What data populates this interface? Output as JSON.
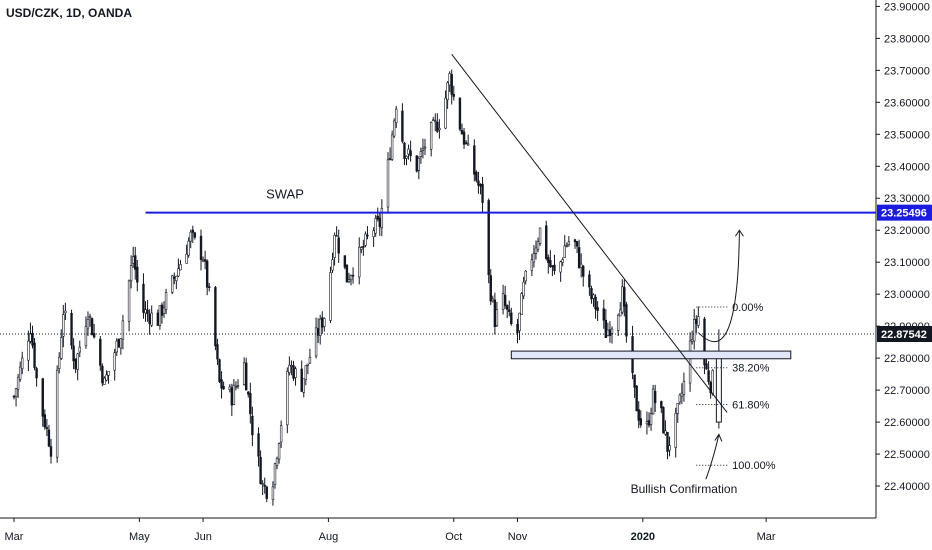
{
  "header": {
    "title": "USD/CZK, 1D, OANDA"
  },
  "colors": {
    "up": "#131722",
    "down": "#131722",
    "swap": "#1c1ce0",
    "zone_fill": "#e1e6f8",
    "zone_stroke": "#131722",
    "axis_text": "#131722",
    "badge_bg": "#131722",
    "badge_swap_bg": "#1c1ce0",
    "badge_text": "#ffffff"
  },
  "chart_data": {
    "type": "candlestick",
    "y_axis": {
      "range": [
        22.3,
        23.92
      ],
      "ticks": [
        "22.40000",
        "22.50000",
        "22.60000",
        "22.70000",
        "22.80000",
        "22.90000",
        "23.00000",
        "23.10000",
        "23.20000",
        "23.30000",
        "23.40000",
        "23.50000",
        "23.60000",
        "23.70000",
        "23.80000",
        "23.90000"
      ],
      "tick_values": [
        22.4,
        22.5,
        22.6,
        22.7,
        22.8,
        22.9,
        23.0,
        23.1,
        23.2,
        23.3,
        23.4,
        23.5,
        23.6,
        23.7,
        23.8,
        23.9
      ]
    },
    "x_axis": {
      "labels": [
        {
          "text": "Mar",
          "day": 0
        },
        {
          "text": "May",
          "day": 61
        },
        {
          "text": "Jun",
          "day": 92
        },
        {
          "text": "Aug",
          "day": 153
        },
        {
          "text": "Oct",
          "day": 214
        },
        {
          "text": "Nov",
          "day": 245
        },
        {
          "text": "2020",
          "day": 306
        },
        {
          "text": "Mar",
          "day": 366
        }
      ]
    },
    "anchors": [
      {
        "day": 0,
        "price": 22.68
      },
      {
        "day": 8,
        "price": 22.9
      },
      {
        "day": 12,
        "price": 22.68
      },
      {
        "day": 18,
        "price": 22.52
      },
      {
        "day": 24,
        "price": 22.95
      },
      {
        "day": 30,
        "price": 22.78
      },
      {
        "day": 36,
        "price": 22.95
      },
      {
        "day": 44,
        "price": 22.72
      },
      {
        "day": 52,
        "price": 22.88
      },
      {
        "day": 58,
        "price": 23.12
      },
      {
        "day": 62,
        "price": 22.95
      },
      {
        "day": 70,
        "price": 22.92
      },
      {
        "day": 78,
        "price": 23.05
      },
      {
        "day": 86,
        "price": 23.18
      },
      {
        "day": 92,
        "price": 23.12
      },
      {
        "day": 96,
        "price": 22.95
      },
      {
        "day": 100,
        "price": 22.72
      },
      {
        "day": 106,
        "price": 22.68
      },
      {
        "day": 112,
        "price": 22.78
      },
      {
        "day": 116,
        "price": 22.58
      },
      {
        "day": 121,
        "price": 22.4
      },
      {
        "day": 125,
        "price": 22.38
      },
      {
        "day": 130,
        "price": 22.6
      },
      {
        "day": 134,
        "price": 22.78
      },
      {
        "day": 140,
        "price": 22.72
      },
      {
        "day": 146,
        "price": 22.85
      },
      {
        "day": 152,
        "price": 22.95
      },
      {
        "day": 156,
        "price": 23.2
      },
      {
        "day": 162,
        "price": 23.05
      },
      {
        "day": 168,
        "price": 23.12
      },
      {
        "day": 174,
        "price": 23.2
      },
      {
        "day": 178,
        "price": 23.22
      },
      {
        "day": 182,
        "price": 23.4
      },
      {
        "day": 186,
        "price": 23.6
      },
      {
        "day": 190,
        "price": 23.45
      },
      {
        "day": 196,
        "price": 23.4
      },
      {
        "day": 202,
        "price": 23.5
      },
      {
        "day": 208,
        "price": 23.55
      },
      {
        "day": 212,
        "price": 23.68
      },
      {
        "day": 216,
        "price": 23.55
      },
      {
        "day": 222,
        "price": 23.42
      },
      {
        "day": 228,
        "price": 23.3
      },
      {
        "day": 231,
        "price": 23.05
      },
      {
        "day": 234,
        "price": 22.92
      },
      {
        "day": 238,
        "price": 22.98
      },
      {
        "day": 242,
        "price": 22.9
      },
      {
        "day": 245,
        "price": 22.88
      },
      {
        "day": 248,
        "price": 23.02
      },
      {
        "day": 252,
        "price": 23.12
      },
      {
        "day": 256,
        "price": 23.2
      },
      {
        "day": 260,
        "price": 23.1
      },
      {
        "day": 264,
        "price": 23.05
      },
      {
        "day": 268,
        "price": 23.15
      },
      {
        "day": 272,
        "price": 23.18
      },
      {
        "day": 276,
        "price": 23.08
      },
      {
        "day": 280,
        "price": 23.0
      },
      {
        "day": 284,
        "price": 22.95
      },
      {
        "day": 288,
        "price": 22.88
      },
      {
        "day": 292,
        "price": 22.92
      },
      {
        "day": 296,
        "price": 23.0
      },
      {
        "day": 299,
        "price": 22.8
      },
      {
        "day": 303,
        "price": 22.65
      },
      {
        "day": 307,
        "price": 22.55
      },
      {
        "day": 311,
        "price": 22.68
      },
      {
        "day": 315,
        "price": 22.62
      },
      {
        "day": 318,
        "price": 22.52
      },
      {
        "day": 322,
        "price": 22.6
      },
      {
        "day": 326,
        "price": 22.72
      },
      {
        "day": 330,
        "price": 22.88
      },
      {
        "day": 333,
        "price": 22.93
      },
      {
        "day": 336,
        "price": 22.78
      },
      {
        "day": 339,
        "price": 22.72
      },
      {
        "day": 342,
        "price": 22.76
      }
    ],
    "swap_level": {
      "label": "SWAP",
      "value": "23.25496",
      "price": 23.25496,
      "day_start": 64
    },
    "current_price": {
      "value": "22.87542",
      "price": 22.87542
    },
    "support_zone": {
      "day_start": 242,
      "day_end": 378,
      "price_low": 22.798,
      "price_high": 22.822
    },
    "trendline": {
      "from": {
        "day": 213,
        "price": 23.75
      },
      "to": {
        "day": 347,
        "price": 22.63
      }
    },
    "fib": {
      "day_start": 332,
      "day_end": 348,
      "levels": [
        {
          "label": "0.00%",
          "price": 22.96
        },
        {
          "label": "38.20%",
          "price": 22.77
        },
        {
          "label": "61.80%",
          "price": 22.655
        },
        {
          "label": "100.00%",
          "price": 22.465
        }
      ]
    },
    "annotations": {
      "bullish_confirmation": {
        "label": "Bullish Confirmation",
        "day": 326,
        "price": 22.39
      },
      "confirmation_candle": {
        "day": 343,
        "open": 22.6,
        "close": 22.8,
        "high": 22.89,
        "low": 22.58
      }
    }
  }
}
